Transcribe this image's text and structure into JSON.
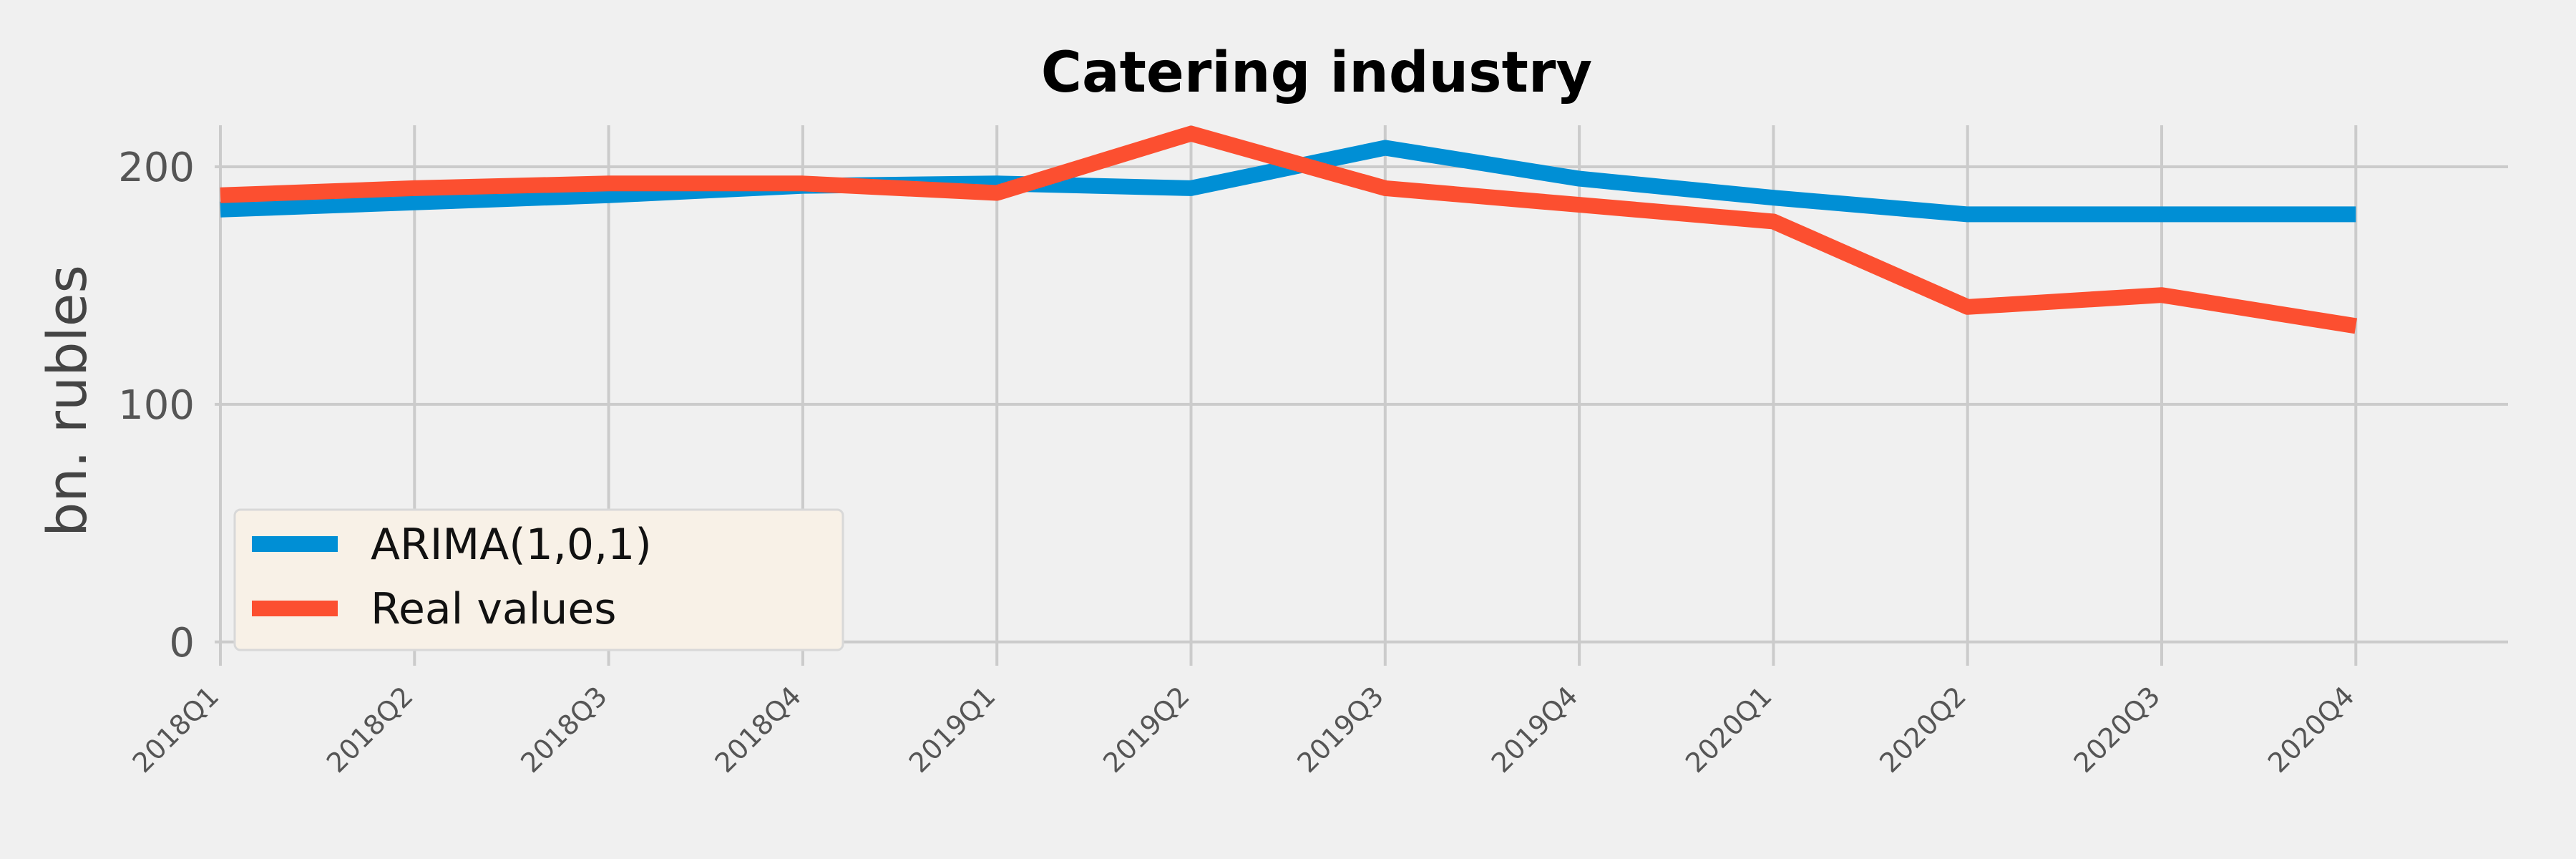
{
  "chart_data": {
    "type": "line",
    "title": "Catering industry",
    "xlabel": "",
    "ylabel": "bn. rubles",
    "categories": [
      "2018Q1",
      "2018Q2",
      "2018Q3",
      "2018Q4",
      "2019Q1",
      "2019Q2",
      "2019Q3",
      "2019Q4",
      "2020Q1",
      "2020Q2",
      "2020Q3",
      "2020Q4"
    ],
    "yticks": [
      0,
      100,
      200
    ],
    "ylim": [
      -10,
      222
    ],
    "grid": true,
    "legend": "bottom-left",
    "series": [
      {
        "name": "ARIMA(1,0,1)",
        "color": "#008fd5",
        "values": [
          182,
          185,
          188,
          192,
          193,
          191,
          208,
          195,
          187,
          180,
          180,
          180
        ]
      },
      {
        "name": "Real values",
        "color": "#fc4f30",
        "values": [
          188,
          191,
          193,
          193,
          189,
          214,
          191,
          184,
          177,
          141,
          146,
          133
        ]
      }
    ]
  }
}
